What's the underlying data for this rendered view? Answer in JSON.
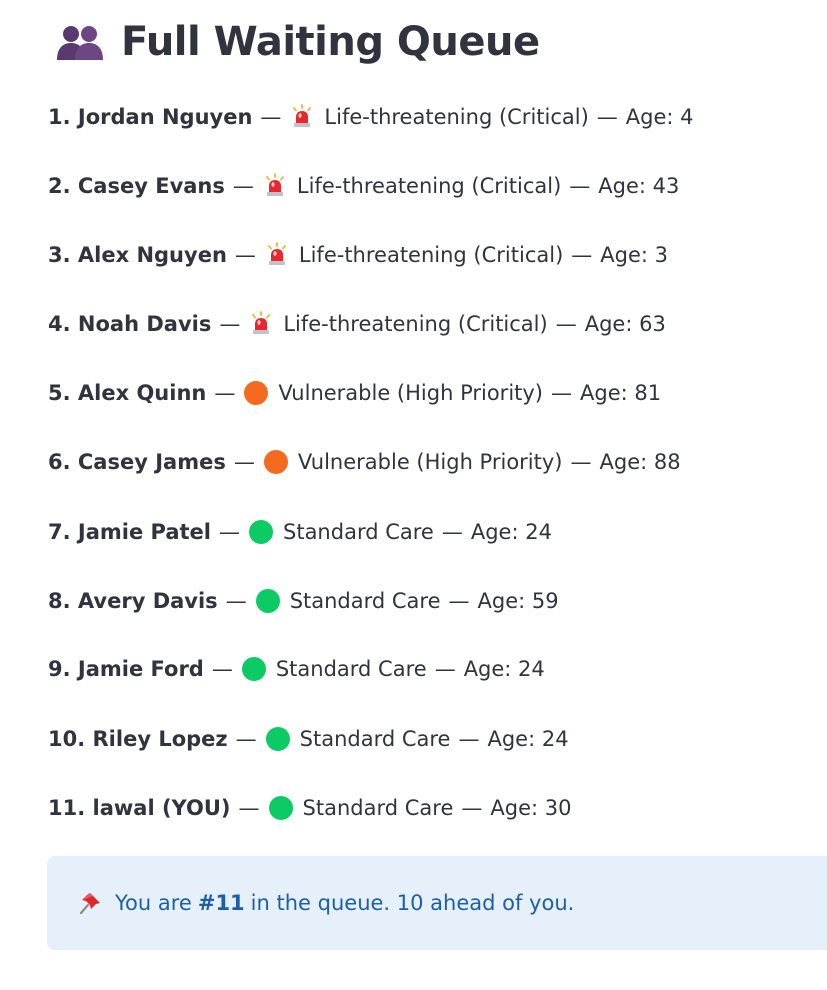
{
  "header": {
    "title": "Full Waiting Queue",
    "icon": "people-icon"
  },
  "queue": [
    {
      "rank": "1.",
      "name": "Jordan Nguyen",
      "priority_icon": "siren-icon",
      "priority": "Life-threatening (Critical)",
      "age": "Age: 4"
    },
    {
      "rank": "2.",
      "name": "Casey Evans",
      "priority_icon": "siren-icon",
      "priority": "Life-threatening (Critical)",
      "age": "Age: 43"
    },
    {
      "rank": "3.",
      "name": "Alex Nguyen",
      "priority_icon": "siren-icon",
      "priority": "Life-threatening (Critical)",
      "age": "Age: 3"
    },
    {
      "rank": "4.",
      "name": "Noah Davis",
      "priority_icon": "siren-icon",
      "priority": "Life-threatening (Critical)",
      "age": "Age: 63"
    },
    {
      "rank": "5.",
      "name": "Alex Quinn",
      "priority_icon": "orange-circle-icon",
      "priority": "Vulnerable (High Priority)",
      "age": "Age: 81"
    },
    {
      "rank": "6.",
      "name": "Casey James",
      "priority_icon": "orange-circle-icon",
      "priority": "Vulnerable (High Priority)",
      "age": "Age: 88"
    },
    {
      "rank": "7.",
      "name": "Jamie Patel",
      "priority_icon": "green-circle-icon",
      "priority": "Standard Care",
      "age": "Age: 24"
    },
    {
      "rank": "8.",
      "name": "Avery Davis",
      "priority_icon": "green-circle-icon",
      "priority": "Standard Care",
      "age": "Age: 59"
    },
    {
      "rank": "9.",
      "name": "Jamie Ford",
      "priority_icon": "green-circle-icon",
      "priority": "Standard Care",
      "age": "Age: 24"
    },
    {
      "rank": "10.",
      "name": "Riley Lopez",
      "priority_icon": "green-circle-icon",
      "priority": "Standard Care",
      "age": "Age: 24"
    },
    {
      "rank": "11.",
      "name": "lawal (YOU)",
      "priority_icon": "green-circle-icon",
      "priority": "Standard Care",
      "age": "Age: 30"
    }
  ],
  "separator": "—",
  "info": {
    "icon": "pushpin-icon",
    "prefix": "You are",
    "position": "#11",
    "suffix": "in the queue. 10 ahead of you."
  },
  "colors": {
    "critical": "#e8262e",
    "high": "#f46b1f",
    "standard": "#0ccb64",
    "info_bg": "#e6f0fb",
    "info_text": "#1c5fa8",
    "text": "#31333f"
  }
}
